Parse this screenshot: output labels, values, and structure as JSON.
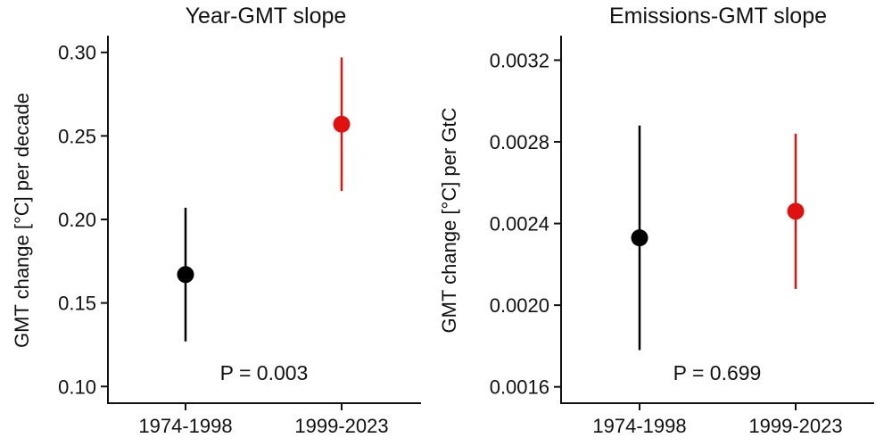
{
  "chart_data": [
    {
      "type": "scatter",
      "title": "Year-GMT slope",
      "xlabel": "",
      "ylabel": "GMT change [°C] per decade",
      "categories": [
        "1974-1998",
        "1999-2023"
      ],
      "ylim": [
        0.09,
        0.31
      ],
      "yticks": [
        0.1,
        0.15,
        0.2,
        0.25,
        0.3
      ],
      "ytick_labels": [
        "0.10",
        "0.15",
        "0.20",
        "0.25",
        "0.30"
      ],
      "series": [
        {
          "name": "1974-1998",
          "value": 0.167,
          "low": 0.127,
          "high": 0.207,
          "color": "#000000"
        },
        {
          "name": "1999-2023",
          "value": 0.257,
          "low": 0.217,
          "high": 0.297,
          "color": "#e0110f"
        }
      ],
      "annotation": "P = 0.003"
    },
    {
      "type": "scatter",
      "title": "Emissions-GMT slope",
      "xlabel": "",
      "ylabel": "GMT change [°C] per GtC",
      "categories": [
        "1974-1998",
        "1999-2023"
      ],
      "ylim": [
        0.00152,
        0.00332
      ],
      "yticks": [
        0.0016,
        0.002,
        0.0024,
        0.0028,
        0.0032
      ],
      "ytick_labels": [
        "0.0016",
        "0.0020",
        "0.0024",
        "0.0028",
        "0.0032"
      ],
      "series": [
        {
          "name": "1974-1998",
          "value": 0.00233,
          "low": 0.00178,
          "high": 0.00288,
          "color": "#000000"
        },
        {
          "name": "1999-2023",
          "value": 0.00246,
          "low": 0.00208,
          "high": 0.00284,
          "color": "#e0110f"
        }
      ],
      "annotation": "P = 0.699"
    }
  ]
}
